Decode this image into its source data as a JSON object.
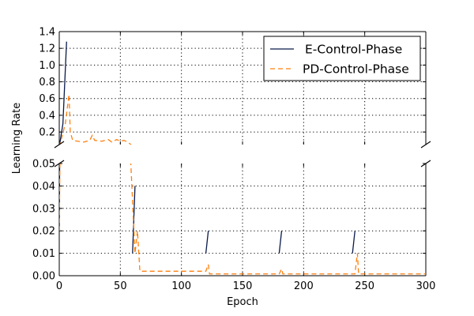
{
  "chart_data": {
    "type": "line",
    "xlabel": "Epoch",
    "ylabel": "Learning Rate",
    "xlim": [
      0,
      300
    ],
    "xticks": [
      0,
      50,
      100,
      150,
      200,
      250,
      300
    ],
    "broken_y_axis": true,
    "panels": [
      {
        "name": "top",
        "ylim": [
          0.05,
          1.4
        ],
        "yticks": [
          0.2,
          0.4,
          0.6,
          0.8,
          1.0,
          1.2,
          1.4
        ],
        "ytick_labels": [
          "0.2",
          "0.4",
          "0.6",
          "0.8",
          "1.0",
          "1.2",
          "1.4"
        ],
        "grid": true
      },
      {
        "name": "bottom",
        "ylim": [
          0.0,
          0.05
        ],
        "yticks": [
          0.0,
          0.01,
          0.02,
          0.03,
          0.04,
          0.05
        ],
        "ytick_labels": [
          "0.00",
          "0.01",
          "0.02",
          "0.03",
          "0.04",
          "0.05"
        ],
        "grid": true
      }
    ],
    "legend": {
      "placement": "top-right",
      "panel": "top"
    },
    "series": [
      {
        "name": "E-Control-Phase",
        "color": "#0a1a4a",
        "style": "solid",
        "segments": [
          [
            [
              0,
              0.02
            ],
            [
              3,
              0.3
            ],
            [
              6,
              1.28
            ]
          ],
          [
            [
              60,
              0.01
            ],
            [
              62,
              0.04
            ]
          ],
          [
            [
              120,
              0.01
            ],
            [
              122,
              0.02
            ]
          ],
          [
            [
              180,
              0.01
            ],
            [
              182,
              0.02
            ]
          ],
          [
            [
              240,
              0.01
            ],
            [
              242,
              0.02
            ]
          ]
        ]
      },
      {
        "name": "PD-Control-Phase",
        "color": "#ff7f0e",
        "style": "dashed",
        "points": [
          [
            0,
            0.02
          ],
          [
            5,
            0.3
          ],
          [
            8,
            0.65
          ],
          [
            9,
            0.2
          ],
          [
            11,
            0.1
          ],
          [
            15,
            0.09
          ],
          [
            20,
            0.08
          ],
          [
            25,
            0.1
          ],
          [
            27,
            0.16
          ],
          [
            29,
            0.1
          ],
          [
            35,
            0.09
          ],
          [
            40,
            0.11
          ],
          [
            43,
            0.08
          ],
          [
            47,
            0.11
          ],
          [
            50,
            0.09
          ],
          [
            53,
            0.1
          ],
          [
            56,
            0.08
          ],
          [
            62,
            0.01
          ],
          [
            64,
            0.02
          ],
          [
            66,
            0.002
          ],
          [
            120,
            0.002
          ],
          [
            122,
            0.005
          ],
          [
            123,
            0.0008
          ],
          [
            180,
            0.0008
          ],
          [
            182,
            0.003
          ],
          [
            183,
            0.0008
          ],
          [
            242,
            0.0008
          ],
          [
            244,
            0.01
          ],
          [
            245,
            0.0008
          ],
          [
            300,
            0.0008
          ]
        ]
      }
    ]
  }
}
